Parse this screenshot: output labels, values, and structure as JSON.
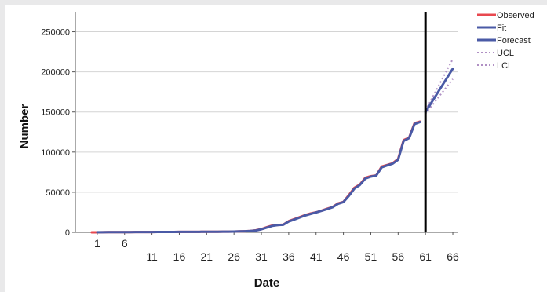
{
  "chart_data": {
    "type": "line",
    "xlabel": "Date",
    "ylabel": "Number",
    "xlim": [
      -3,
      67
    ],
    "ylim": [
      0,
      275000
    ],
    "x_ticks": [
      1,
      6,
      11,
      16,
      21,
      26,
      31,
      36,
      41,
      46,
      51,
      56,
      61,
      66
    ],
    "y_ticks": [
      0,
      50000,
      100000,
      150000,
      200000,
      250000
    ],
    "grid": "horizontal",
    "legend_position": "right",
    "forecast_start": 61,
    "series": [
      {
        "name": "Observed",
        "color": "#e8484f",
        "style": "solid",
        "x": [
          0,
          1,
          2,
          3,
          4,
          5,
          6,
          7,
          8,
          9,
          10,
          11,
          12,
          13,
          14,
          15,
          16,
          17,
          18,
          19,
          20,
          21,
          22,
          23,
          24,
          25,
          26,
          27,
          28,
          29,
          30,
          31,
          32,
          33,
          34,
          35,
          36,
          37,
          38,
          39,
          40,
          41,
          42,
          43,
          44,
          45,
          46,
          47,
          48,
          49,
          50,
          51,
          52,
          53,
          54,
          55,
          56,
          57,
          58,
          59,
          60
        ],
        "y": [
          0,
          0,
          100,
          150,
          200,
          250,
          300,
          320,
          350,
          380,
          400,
          420,
          450,
          480,
          500,
          520,
          550,
          580,
          600,
          620,
          650,
          700,
          750,
          800,
          850,
          900,
          1000,
          1200,
          1400,
          1700,
          2500,
          4000,
          6500,
          8500,
          9200,
          9500,
          14000,
          16500,
          19000,
          21500,
          23500,
          25000,
          27000,
          29500,
          31500,
          36000,
          38000,
          46500,
          55500,
          59500,
          68000,
          70000,
          71000,
          82000,
          84000,
          86000,
          91500,
          115000,
          118000,
          136000,
          138000
        ]
      },
      {
        "name": "Fit",
        "color": "#4a5aa6",
        "style": "solid",
        "x": [
          1,
          2,
          3,
          4,
          5,
          6,
          7,
          8,
          9,
          10,
          11,
          12,
          13,
          14,
          15,
          16,
          17,
          18,
          19,
          20,
          21,
          22,
          23,
          24,
          25,
          26,
          27,
          28,
          29,
          30,
          31,
          32,
          33,
          34,
          35,
          36,
          37,
          38,
          39,
          40,
          41,
          42,
          43,
          44,
          45,
          46,
          47,
          48,
          49,
          50,
          51,
          52,
          53,
          54,
          55,
          56,
          57,
          58,
          59,
          60
        ],
        "y": [
          80,
          100,
          150,
          200,
          250,
          300,
          320,
          350,
          380,
          400,
          420,
          450,
          480,
          500,
          520,
          550,
          580,
          600,
          620,
          650,
          700,
          750,
          800,
          850,
          900,
          1000,
          1200,
          1400,
          1700,
          2300,
          3800,
          6000,
          8000,
          9000,
          9400,
          13500,
          16000,
          18500,
          21000,
          23000,
          24800,
          26800,
          29000,
          31200,
          35500,
          37800,
          45500,
          54500,
          59000,
          67000,
          69500,
          70800,
          81000,
          83500,
          85500,
          90500,
          114000,
          117500,
          135000,
          137500
        ]
      },
      {
        "name": "Forecast",
        "color": "#4a5aa6",
        "style": "solid",
        "x": [
          61,
          66
        ],
        "y": [
          150000,
          204000
        ]
      },
      {
        "name": "UCL",
        "color": "#b090c4",
        "style": "dotted",
        "x": [
          61,
          66
        ],
        "y": [
          152000,
          216000
        ]
      },
      {
        "name": "LCL",
        "color": "#b090c4",
        "style": "dotted",
        "x": [
          61,
          66
        ],
        "y": [
          148000,
          191000
        ]
      }
    ]
  }
}
